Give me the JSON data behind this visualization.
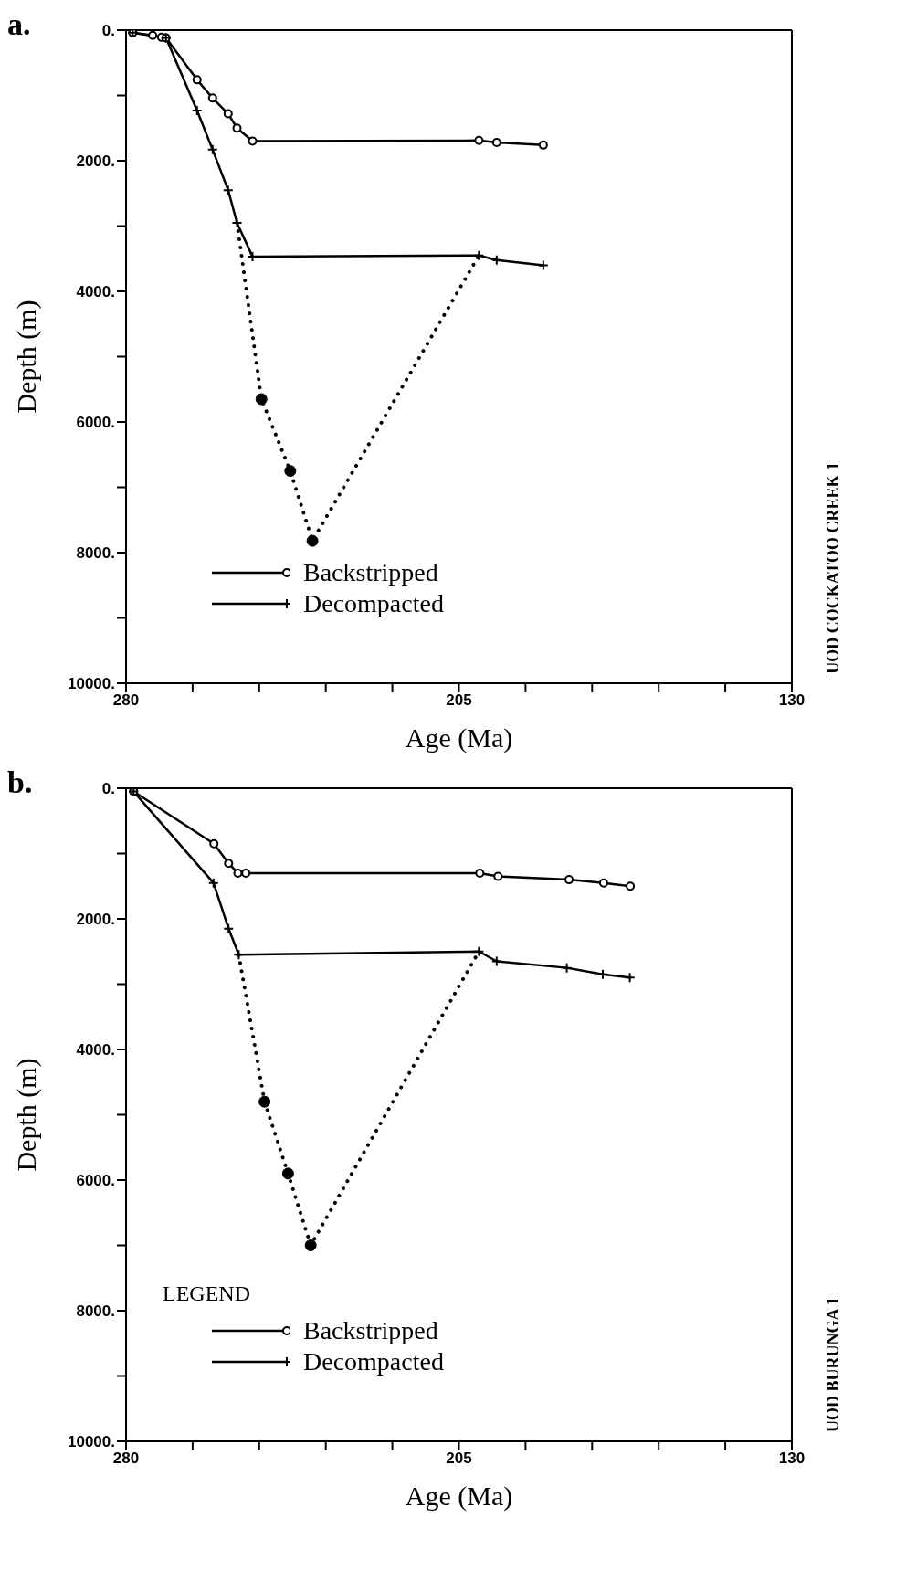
{
  "chart_data": [
    {
      "type": "line",
      "title": "a.",
      "xlabel": "Age (Ma)",
      "ylabel": "Depth (m)",
      "annotations": [
        "UOD COCKATOO CREEK 1"
      ],
      "xlim": [
        280,
        130
      ],
      "xticks": [
        {
          "value": 280,
          "label": "280"
        },
        {
          "value": 265,
          "label": null
        },
        {
          "value": 250,
          "label": null
        },
        {
          "value": 235,
          "label": null
        },
        {
          "value": 220,
          "label": null
        },
        {
          "value": 205,
          "label": "205"
        },
        {
          "value": 190,
          "label": null
        },
        {
          "value": 175,
          "label": null
        },
        {
          "value": 160,
          "label": null
        },
        {
          "value": 145,
          "label": null
        },
        {
          "value": 130,
          "label": "130"
        }
      ],
      "ylim": [
        10000,
        0
      ],
      "yticks": [
        {
          "value": 0,
          "label": "0."
        },
        {
          "value": 1000,
          "label": null
        },
        {
          "value": 2000,
          "label": "2000."
        },
        {
          "value": 3000,
          "label": null
        },
        {
          "value": 4000,
          "label": "4000."
        },
        {
          "value": 5000,
          "label": null
        },
        {
          "value": 6000,
          "label": "6000."
        },
        {
          "value": 7000,
          "label": null
        },
        {
          "value": 8000,
          "label": "8000."
        },
        {
          "value": 9000,
          "label": null
        },
        {
          "value": 10000,
          "label": "10000."
        }
      ],
      "grid": false,
      "legend": "bottom left",
      "series": [
        {
          "name": "Backstripped",
          "color": "#000000",
          "marker": "circle",
          "line_style": "solid",
          "x": [
            278.5,
            274,
            272,
            271,
            264,
            260.5,
            257,
            255,
            251.5,
            200.5,
            196.5,
            186
          ],
          "values": [
            40,
            80,
            110,
            120,
            760,
            1040,
            1280,
            1500,
            1700,
            1690,
            1720,
            1760
          ]
        },
        {
          "name": "Decompacted",
          "color": "#000000",
          "marker": "cross",
          "line_style": "solid",
          "x": [
            278.5,
            271,
            264,
            260.5,
            257,
            255,
            251.5,
            200.5,
            196.5,
            186
          ],
          "values": [
            40,
            120,
            1230,
            1830,
            2450,
            2950,
            3470,
            3450,
            3520,
            3600
          ]
        },
        {
          "color": "#000000",
          "marker": "none",
          "line_style": "dotted",
          "x": [
            255,
            249.5,
            243,
            238,
            200.5
          ],
          "values": [
            2950,
            5650,
            6750,
            7820,
            3450
          ]
        },
        {
          "type": "scatter",
          "color": "#000000",
          "marker": "circle",
          "x": [
            249.5,
            243,
            238
          ],
          "values": [
            5650,
            6750,
            7820
          ]
        }
      ]
    },
    {
      "type": "line",
      "title": "b.",
      "xlabel": "Age (Ma)",
      "ylabel": "Depth (m)",
      "legend_title": "LEGEND",
      "annotations": [
        "UOD BURUNGA 1"
      ],
      "xlim": [
        280,
        130
      ],
      "xticks": [
        {
          "value": 280,
          "label": "280"
        },
        {
          "value": 265,
          "label": null
        },
        {
          "value": 250,
          "label": null
        },
        {
          "value": 235,
          "label": null
        },
        {
          "value": 220,
          "label": null
        },
        {
          "value": 205,
          "label": "205"
        },
        {
          "value": 190,
          "label": null
        },
        {
          "value": 175,
          "label": null
        },
        {
          "value": 160,
          "label": null
        },
        {
          "value": 145,
          "label": null
        },
        {
          "value": 130,
          "label": "130"
        }
      ],
      "ylim": [
        10000,
        0
      ],
      "yticks": [
        {
          "value": 0,
          "label": "0."
        },
        {
          "value": 1000,
          "label": null
        },
        {
          "value": 2000,
          "label": "2000."
        },
        {
          "value": 3000,
          "label": null
        },
        {
          "value": 4000,
          "label": "4000."
        },
        {
          "value": 5000,
          "label": null
        },
        {
          "value": 6000,
          "label": "6000."
        },
        {
          "value": 7000,
          "label": null
        },
        {
          "value": 8000,
          "label": "8000."
        },
        {
          "value": 9000,
          "label": null
        },
        {
          "value": 10000,
          "label": "10000."
        }
      ],
      "grid": false,
      "legend": "bottom left",
      "series": [
        {
          "name": "Backstripped",
          "color": "#000000",
          "marker": "circle",
          "line_style": "solid",
          "x": [
            278.3,
            260.2,
            256.9,
            254.8,
            253,
            200.3,
            196.2,
            180.2,
            172.4,
            166.4
          ],
          "values": [
            50,
            850,
            1150,
            1300,
            1300,
            1300,
            1350,
            1400,
            1450,
            1500
          ]
        },
        {
          "name": "Decompacted",
          "color": "#000000",
          "marker": "cross",
          "line_style": "solid",
          "x": [
            278.3,
            260.3,
            256.9,
            254.6,
            200.5,
            196.5,
            180.7,
            172.6,
            166.5
          ],
          "values": [
            50,
            1450,
            2150,
            2550,
            2500,
            2650,
            2750,
            2850,
            2900
          ]
        },
        {
          "color": "#000000",
          "marker": "none",
          "line_style": "dotted",
          "x": [
            254.6,
            248.8,
            243.5,
            238.4,
            200.5
          ],
          "values": [
            2550,
            4800,
            5900,
            7000,
            2500
          ]
        },
        {
          "type": "scatter",
          "color": "#000000",
          "marker": "circle",
          "x": [
            248.8,
            243.5,
            238.4
          ],
          "values": [
            4800,
            5900,
            7000
          ]
        }
      ]
    }
  ]
}
